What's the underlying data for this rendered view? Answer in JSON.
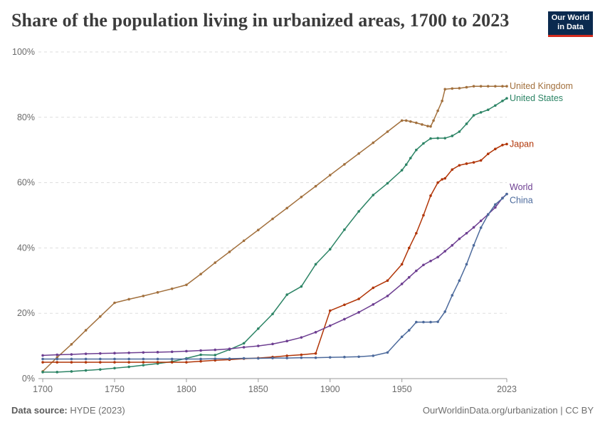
{
  "header": {
    "title": "Share of the population living in urbanized areas, 1700 to 2023",
    "logo_line1": "Our World",
    "logo_line2": "in Data"
  },
  "footer": {
    "source_label": "Data source:",
    "source_value": "HYDE (2023)",
    "url": "OurWorldinData.org/urbanization | CC BY"
  },
  "chart_data": {
    "type": "line",
    "title": "Share of the population living in urbanized areas, 1700 to 2023",
    "xlim": [
      1697,
      2023
    ],
    "ylim": [
      0,
      100
    ],
    "x_ticks": [
      "1700",
      "1750",
      "1800",
      "1850",
      "1900",
      "1950",
      "2023"
    ],
    "x_tick_values": [
      1700,
      1750,
      1800,
      1850,
      1900,
      1950,
      2023
    ],
    "y_ticks": [
      "0%",
      "20%",
      "40%",
      "60%",
      "80%",
      "100%"
    ],
    "y_tick_values": [
      0,
      20,
      40,
      60,
      80,
      100
    ],
    "grid": true,
    "series": [
      {
        "name": "United Kingdom",
        "color": "#a2703d",
        "points": [
          [
            1700,
            2.2
          ],
          [
            1710,
            6.5
          ],
          [
            1720,
            10.5
          ],
          [
            1730,
            14.8
          ],
          [
            1740,
            19
          ],
          [
            1750,
            23.2
          ],
          [
            1760,
            24.3
          ],
          [
            1770,
            25.3
          ],
          [
            1780,
            26.4
          ],
          [
            1790,
            27.5
          ],
          [
            1800,
            28.7
          ],
          [
            1810,
            32
          ],
          [
            1820,
            35.5
          ],
          [
            1830,
            38.8
          ],
          [
            1840,
            42.2
          ],
          [
            1850,
            45.5
          ],
          [
            1860,
            48.9
          ],
          [
            1870,
            52.2
          ],
          [
            1880,
            55.6
          ],
          [
            1890,
            58.9
          ],
          [
            1900,
            62.3
          ],
          [
            1910,
            65.6
          ],
          [
            1920,
            68.9
          ],
          [
            1930,
            72.2
          ],
          [
            1940,
            75.6
          ],
          [
            1950,
            79
          ],
          [
            1953,
            79
          ],
          [
            1956,
            78.7
          ],
          [
            1960,
            78.3
          ],
          [
            1964,
            77.8
          ],
          [
            1968,
            77.3
          ],
          [
            1970,
            77.2
          ],
          [
            1972,
            79
          ],
          [
            1975,
            82
          ],
          [
            1978,
            85
          ],
          [
            1980,
            88.6
          ],
          [
            1985,
            88.8
          ],
          [
            1990,
            88.9
          ],
          [
            1995,
            89.2
          ],
          [
            2000,
            89.5
          ],
          [
            2005,
            89.5
          ],
          [
            2010,
            89.5
          ],
          [
            2015,
            89.5
          ],
          [
            2020,
            89.5
          ],
          [
            2023,
            89.5
          ]
        ]
      },
      {
        "name": "United States",
        "color": "#2c8465",
        "points": [
          [
            1700,
            2
          ],
          [
            1710,
            2
          ],
          [
            1720,
            2.2
          ],
          [
            1730,
            2.5
          ],
          [
            1740,
            2.8
          ],
          [
            1750,
            3.2
          ],
          [
            1760,
            3.6
          ],
          [
            1770,
            4.1
          ],
          [
            1780,
            4.6
          ],
          [
            1790,
            5.2
          ],
          [
            1800,
            6.2
          ],
          [
            1810,
            7.3
          ],
          [
            1820,
            7.2
          ],
          [
            1830,
            8.9
          ],
          [
            1840,
            10.8
          ],
          [
            1850,
            15.3
          ],
          [
            1860,
            19.8
          ],
          [
            1870,
            25.7
          ],
          [
            1880,
            28.2
          ],
          [
            1890,
            35
          ],
          [
            1900,
            39.6
          ],
          [
            1910,
            45.6
          ],
          [
            1920,
            51.2
          ],
          [
            1930,
            56.2
          ],
          [
            1940,
            59.8
          ],
          [
            1950,
            63.8
          ],
          [
            1953,
            65.5
          ],
          [
            1956,
            67.5
          ],
          [
            1960,
            70
          ],
          [
            1965,
            72
          ],
          [
            1970,
            73.5
          ],
          [
            1975,
            73.6
          ],
          [
            1980,
            73.6
          ],
          [
            1985,
            74.3
          ],
          [
            1990,
            75.6
          ],
          [
            1995,
            78
          ],
          [
            2000,
            80.6
          ],
          [
            2005,
            81.5
          ],
          [
            2010,
            82.3
          ],
          [
            2015,
            83.6
          ],
          [
            2020,
            85
          ],
          [
            2023,
            85.8
          ]
        ]
      },
      {
        "name": "Japan",
        "color": "#b13507",
        "points": [
          [
            1700,
            5
          ],
          [
            1710,
            5
          ],
          [
            1720,
            5
          ],
          [
            1730,
            5
          ],
          [
            1740,
            5
          ],
          [
            1750,
            5
          ],
          [
            1760,
            5
          ],
          [
            1770,
            5
          ],
          [
            1780,
            5
          ],
          [
            1790,
            5
          ],
          [
            1800,
            5
          ],
          [
            1810,
            5.3
          ],
          [
            1820,
            5.6
          ],
          [
            1830,
            5.8
          ],
          [
            1840,
            6.1
          ],
          [
            1850,
            6.3
          ],
          [
            1860,
            6.6
          ],
          [
            1870,
            7
          ],
          [
            1880,
            7.3
          ],
          [
            1890,
            7.7
          ],
          [
            1900,
            20.8
          ],
          [
            1910,
            22.6
          ],
          [
            1920,
            24.4
          ],
          [
            1930,
            27.8
          ],
          [
            1940,
            30
          ],
          [
            1950,
            35
          ],
          [
            1955,
            40
          ],
          [
            1960,
            44.5
          ],
          [
            1965,
            50
          ],
          [
            1970,
            56
          ],
          [
            1975,
            60
          ],
          [
            1978,
            61
          ],
          [
            1980,
            61.3
          ],
          [
            1985,
            64
          ],
          [
            1990,
            65.3
          ],
          [
            1995,
            65.8
          ],
          [
            2000,
            66.2
          ],
          [
            2005,
            66.8
          ],
          [
            2010,
            68.8
          ],
          [
            2015,
            70.3
          ],
          [
            2020,
            71.5
          ],
          [
            2023,
            71.8
          ]
        ]
      },
      {
        "name": "World",
        "color": "#6d3e91",
        "points": [
          [
            1700,
            7.1
          ],
          [
            1710,
            7.3
          ],
          [
            1720,
            7.4
          ],
          [
            1730,
            7.6
          ],
          [
            1740,
            7.7
          ],
          [
            1750,
            7.8
          ],
          [
            1760,
            7.9
          ],
          [
            1770,
            8
          ],
          [
            1780,
            8.1
          ],
          [
            1790,
            8.2
          ],
          [
            1800,
            8.4
          ],
          [
            1810,
            8.6
          ],
          [
            1820,
            8.8
          ],
          [
            1830,
            9.1
          ],
          [
            1840,
            9.6
          ],
          [
            1850,
            10
          ],
          [
            1860,
            10.6
          ],
          [
            1870,
            11.5
          ],
          [
            1880,
            12.6
          ],
          [
            1890,
            14.2
          ],
          [
            1900,
            16.2
          ],
          [
            1910,
            18.2
          ],
          [
            1920,
            20.3
          ],
          [
            1930,
            22.7
          ],
          [
            1940,
            25.3
          ],
          [
            1950,
            29
          ],
          [
            1955,
            31
          ],
          [
            1960,
            33
          ],
          [
            1965,
            34.8
          ],
          [
            1970,
            36
          ],
          [
            1975,
            37.2
          ],
          [
            1980,
            39
          ],
          [
            1985,
            40.8
          ],
          [
            1990,
            42.8
          ],
          [
            1995,
            44.5
          ],
          [
            2000,
            46.3
          ],
          [
            2005,
            48.3
          ],
          [
            2010,
            50.3
          ],
          [
            2015,
            52.4
          ],
          [
            2020,
            55.3
          ],
          [
            2023,
            56.5
          ]
        ]
      },
      {
        "name": "China",
        "color": "#4c6a9c",
        "points": [
          [
            1700,
            6
          ],
          [
            1710,
            6
          ],
          [
            1720,
            6
          ],
          [
            1730,
            6
          ],
          [
            1740,
            6
          ],
          [
            1750,
            6
          ],
          [
            1760,
            6
          ],
          [
            1770,
            6
          ],
          [
            1780,
            6
          ],
          [
            1790,
            6
          ],
          [
            1800,
            6
          ],
          [
            1810,
            6
          ],
          [
            1820,
            6.1
          ],
          [
            1830,
            6.1
          ],
          [
            1840,
            6.2
          ],
          [
            1850,
            6.2
          ],
          [
            1860,
            6.3
          ],
          [
            1870,
            6.3
          ],
          [
            1880,
            6.4
          ],
          [
            1890,
            6.4
          ],
          [
            1900,
            6.5
          ],
          [
            1910,
            6.6
          ],
          [
            1920,
            6.7
          ],
          [
            1930,
            7
          ],
          [
            1940,
            8
          ],
          [
            1950,
            12.8
          ],
          [
            1955,
            14.8
          ],
          [
            1960,
            17.3
          ],
          [
            1965,
            17.3
          ],
          [
            1970,
            17.3
          ],
          [
            1975,
            17.4
          ],
          [
            1980,
            20.5
          ],
          [
            1985,
            25.5
          ],
          [
            1990,
            30
          ],
          [
            1995,
            35
          ],
          [
            2000,
            40.8
          ],
          [
            2005,
            46.2
          ],
          [
            2010,
            50.2
          ],
          [
            2015,
            53.3
          ],
          [
            2020,
            55.2
          ],
          [
            2023,
            56.5
          ]
        ]
      }
    ],
    "end_labels": [
      {
        "name": "United Kingdom",
        "text": "United Kingdom",
        "color": "#a2703d",
        "y": 89.5
      },
      {
        "name": "United States",
        "text": "United States",
        "color": "#2c8465",
        "y": 85.8
      },
      {
        "name": "Japan",
        "text": "Japan",
        "color": "#b13507",
        "y": 71.8
      },
      {
        "name": "World",
        "text": "World",
        "color": "#6d3e91",
        "y": 58.6
      },
      {
        "name": "China",
        "text": "China",
        "color": "#4c6a9c",
        "y": 54.6
      }
    ]
  }
}
